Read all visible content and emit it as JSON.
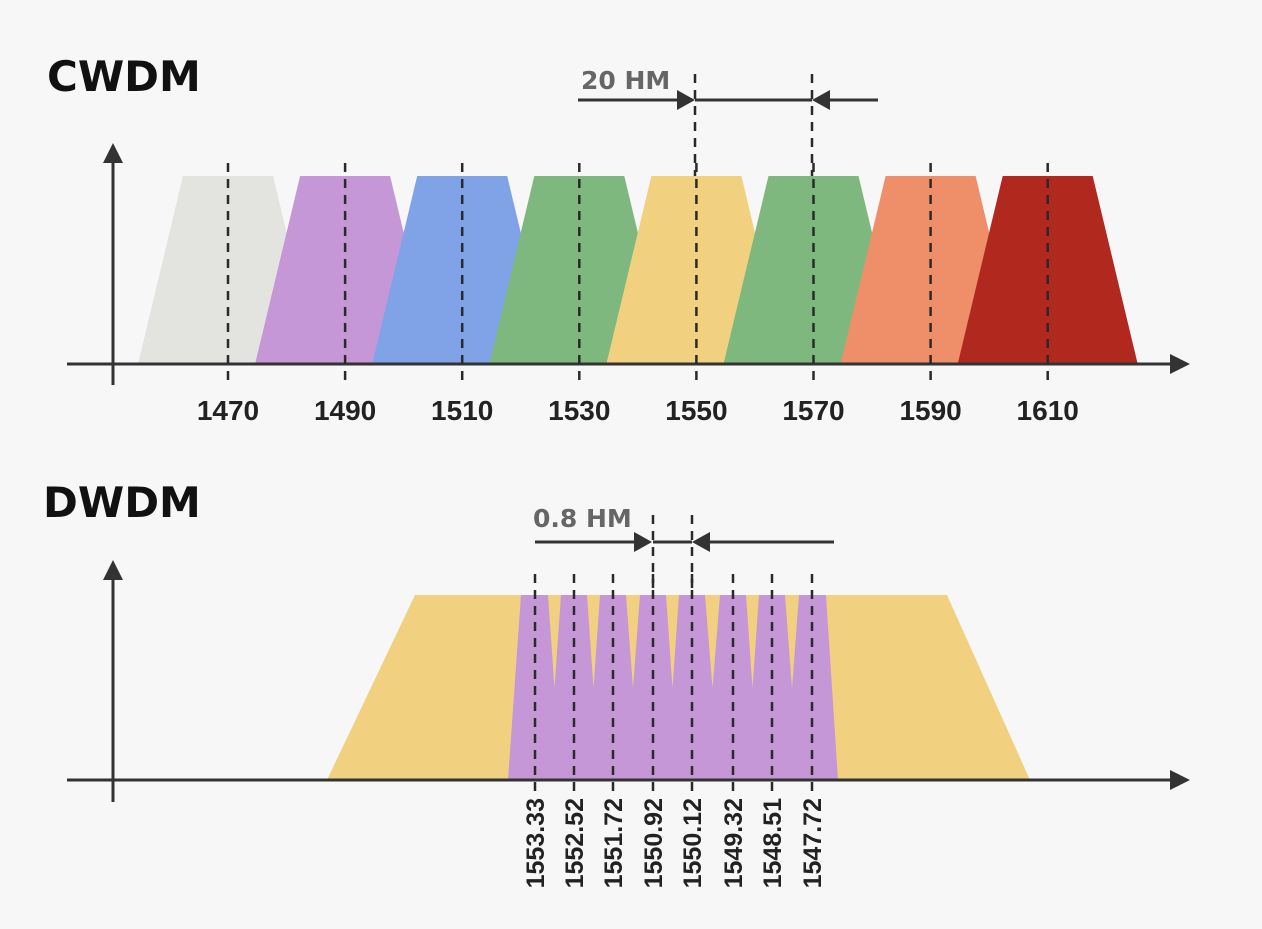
{
  "cwdm": {
    "title": "CWDM",
    "spacing_label": "20 HM",
    "channels": [
      {
        "label": "1470",
        "color": "#e3e3e0"
      },
      {
        "label": "1490",
        "color": "#c597d6"
      },
      {
        "label": "1510",
        "color": "#7fa3e6"
      },
      {
        "label": "1530",
        "color": "#7fb87e"
      },
      {
        "label": "1550",
        "color": "#f1d17f"
      },
      {
        "label": "1570",
        "color": "#7fb87e"
      },
      {
        "label": "1590",
        "color": "#ef8f6a"
      },
      {
        "label": "1610",
        "color": "#b0281e"
      }
    ],
    "spacing_between": [
      "1550",
      "1570"
    ]
  },
  "dwdm": {
    "title": "DWDM",
    "spacing_label": "0.8 HM",
    "band_color": "#f1d17f",
    "channel_color": "#c597d6",
    "channels": [
      "1553.33",
      "1552.52",
      "1551.72",
      "1550.92",
      "1550.12",
      "1549.32",
      "1548.51",
      "1547.72"
    ],
    "spacing_between": [
      "1550.92",
      "1550.12"
    ]
  }
}
